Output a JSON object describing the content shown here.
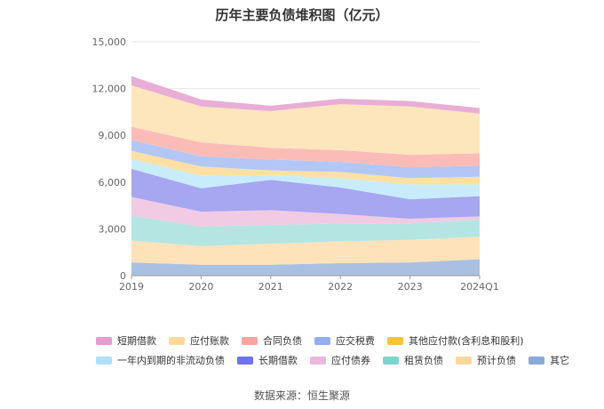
{
  "chart_data": {
    "type": "area",
    "stacked": true,
    "title": "历年主要负债堆积图（亿元）",
    "categories": [
      "2019",
      "2020",
      "2021",
      "2022",
      "2023",
      "2024Q1"
    ],
    "yticks": [
      "0",
      "3,000",
      "6,000",
      "9,000",
      "12,000",
      "15,000"
    ],
    "ylim": [
      0,
      15000
    ],
    "grid": true,
    "legend_position": "bottom",
    "series": [
      {
        "name": "其它",
        "color": "#aac0e2",
        "values": [
          850,
          700,
          700,
          800,
          850,
          1050
        ]
      },
      {
        "name": "预计负债",
        "color": "#fde2ba",
        "values": [
          1400,
          1200,
          1350,
          1400,
          1450,
          1450
        ]
      },
      {
        "name": "租赁负债",
        "color": "#b5e5e3",
        "values": [
          1600,
          1250,
          1200,
          1150,
          1050,
          1100
        ]
      },
      {
        "name": "应付债券",
        "color": "#f1cbe3",
        "values": [
          1200,
          950,
          950,
          600,
          300,
          200
        ]
      },
      {
        "name": "长期借款",
        "color": "#a6a6f1",
        "values": [
          1800,
          1500,
          1950,
          1700,
          1250,
          1300
        ]
      },
      {
        "name": "一年内到期的非流动负债",
        "color": "#c9ecfc",
        "values": [
          650,
          800,
          300,
          600,
          950,
          750
        ]
      },
      {
        "name": "其他应付款(含利息和股利)",
        "color": "#fde0a2",
        "values": [
          500,
          600,
          300,
          400,
          400,
          500
        ]
      },
      {
        "name": "应交税费",
        "color": "#b3c7f7",
        "values": [
          700,
          650,
          700,
          650,
          700,
          700
        ]
      },
      {
        "name": "合同负债",
        "color": "#fbbcb8",
        "values": [
          850,
          900,
          750,
          750,
          800,
          800
        ]
      },
      {
        "name": "应付账款",
        "color": "#fde5bc",
        "values": [
          2650,
          2300,
          2350,
          2950,
          3100,
          2550
        ]
      },
      {
        "name": "短期借款",
        "color": "#e8aed5",
        "values": [
          600,
          450,
          350,
          350,
          350,
          350
        ]
      }
    ]
  },
  "legend": {
    "row1": [
      {
        "label": "短期借款",
        "color": "#e59ccf"
      },
      {
        "label": "应付账款",
        "color": "#fcd998"
      },
      {
        "label": "合同负债",
        "color": "#f9a49c"
      },
      {
        "label": "应交税费",
        "color": "#8fb0f5"
      },
      {
        "label": "其他应付款(含利息和股利)",
        "color": "#fdc33a"
      }
    ],
    "row2": [
      {
        "label": "一年内到期的非流动负债",
        "color": "#aee0f9"
      },
      {
        "label": "长期借款",
        "color": "#6f72e8"
      },
      {
        "label": "应付债券",
        "color": "#ebb8dc"
      },
      {
        "label": "租赁负债",
        "color": "#7ed3d0"
      },
      {
        "label": "预计负债",
        "color": "#fcd79c"
      },
      {
        "label": "其它",
        "color": "#8aaadb"
      }
    ]
  },
  "source": "数据来源：恒生聚源"
}
